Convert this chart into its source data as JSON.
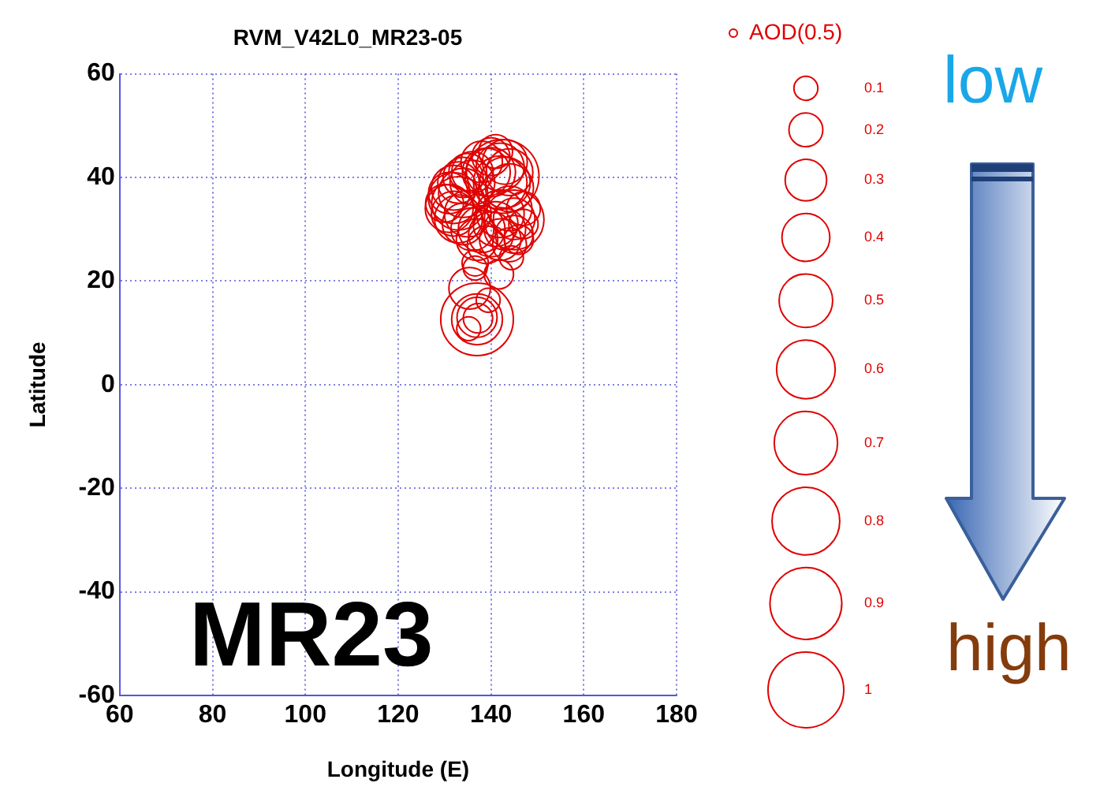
{
  "chart_data": {
    "type": "bubble",
    "title": "RVM_V42L0_MR23-05",
    "xlabel": "Longitude (E)",
    "ylabel": "Latitude",
    "xlim": [
      60,
      180
    ],
    "xticks": [
      60,
      80,
      100,
      120,
      140,
      160,
      180
    ],
    "ylim": [
      -60,
      60
    ],
    "yticks": [
      -60,
      -40,
      -20,
      0,
      20,
      40,
      60
    ],
    "grid": true,
    "legend": "top right",
    "size_legend": [
      0.1,
      0.2,
      0.3,
      0.4,
      0.5,
      0.6,
      0.7,
      0.8,
      0.9,
      1
    ],
    "annotations": [
      "MR23",
      "low",
      "high"
    ],
    "series": [
      {
        "name": "AOD(0.5)",
        "color": "#e00000",
        "x": [
          132,
          133,
          131,
          132,
          133,
          134,
          131,
          132,
          133,
          135,
          134,
          136,
          130,
          134,
          136,
          135,
          142,
          143,
          144,
          142,
          144,
          142,
          141,
          143,
          140,
          138,
          139,
          138,
          140,
          141,
          145,
          145,
          146,
          144,
          142,
          139,
          137,
          143,
          140,
          136,
          144,
          147,
          147,
          145,
          144.4,
          136.6,
          136.6,
          135.4,
          139.4,
          137,
          137,
          137,
          137.2,
          135.2,
          142.4,
          141.7
        ],
        "values": [
          36,
          35,
          34,
          33,
          32,
          37,
          37,
          38,
          39,
          33,
          31,
          30,
          35,
          40,
          39,
          41,
          42,
          43,
          41,
          39,
          34,
          33,
          31,
          30,
          29,
          30,
          41,
          43,
          44,
          45,
          32,
          29,
          28,
          27,
          28,
          27,
          28,
          39,
          41,
          41,
          38,
          34,
          31,
          31.8,
          24.5,
          23.5,
          22.5,
          18.6,
          16.3,
          12.6,
          12.6,
          13,
          12.8,
          10.8,
          40.2,
          21.3
        ],
        "sizes": [
          0.45,
          0.5,
          0.4,
          0.35,
          0.4,
          0.42,
          0.3,
          0.35,
          0.3,
          0.38,
          0.3,
          0.32,
          0.25,
          0.28,
          0.35,
          0.25,
          0.4,
          0.35,
          0.38,
          0.5,
          0.35,
          0.4,
          0.35,
          0.3,
          0.35,
          0.38,
          0.4,
          0.3,
          0.25,
          0.2,
          0.3,
          0.25,
          0.15,
          0.2,
          0.3,
          0.25,
          0.3,
          0.45,
          0.42,
          0.3,
          0.4,
          0.2,
          0.15,
          0.62,
          0.1,
          0.12,
          0.1,
          0.3,
          0.1,
          0.92,
          0.45,
          0.28,
          0.15,
          0.1,
          0.95,
          0.15
        ]
      }
    ]
  }
}
